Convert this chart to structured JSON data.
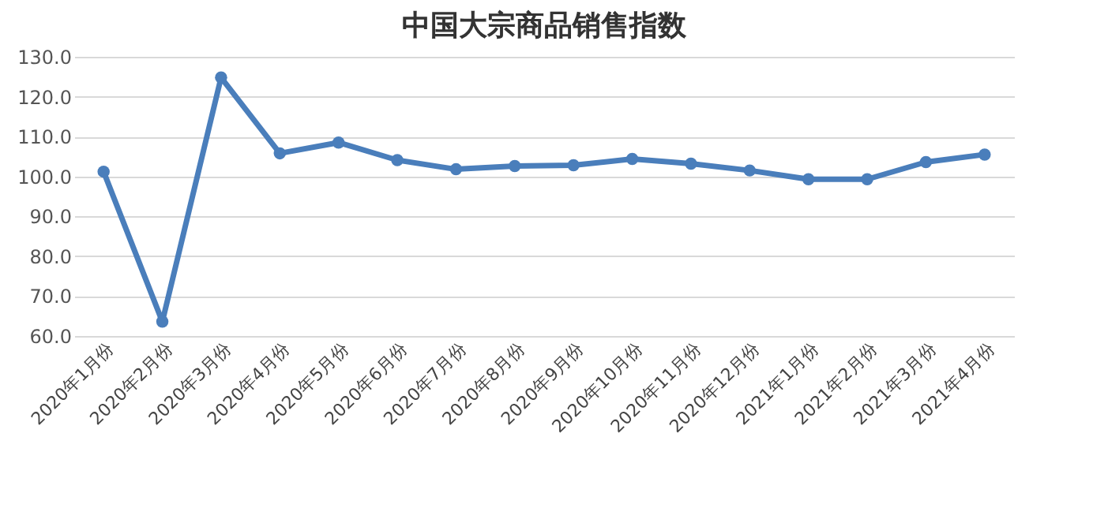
{
  "chart_data": {
    "type": "line",
    "title": "中国大宗商品销售指数",
    "categories": [
      "2020年1月份",
      "2020年2月份",
      "2020年3月份",
      "2020年4月份",
      "2020年5月份",
      "2020年6月份",
      "2020年7月份",
      "2020年8月份",
      "2020年9月份",
      "2020年10月份",
      "2020年11月份",
      "2020年12月份",
      "2021年1月份",
      "2021年2月份",
      "2021年3月份",
      "2021年4月份"
    ],
    "series": [
      {
        "color": "#4a7ebb",
        "values": [
          101.2,
          63.6,
          124.8,
          105.8,
          108.5,
          104.1,
          101.8,
          102.6,
          102.8,
          104.4,
          103.2,
          101.5,
          99.3,
          99.3,
          103.6,
          105.5
        ]
      }
    ],
    "ylim": [
      60,
      130
    ],
    "yticks": [
      {
        "value": 60,
        "label": "60.0"
      },
      {
        "value": 70,
        "label": "70.0"
      },
      {
        "value": 80,
        "label": "80.0"
      },
      {
        "value": 90,
        "label": "90.0"
      },
      {
        "value": 100,
        "label": "100.0"
      },
      {
        "value": 110,
        "label": "110.0"
      },
      {
        "value": 120,
        "label": "120.0"
      },
      {
        "value": 130,
        "label": "130.0"
      }
    ],
    "grid": "y",
    "marker": "circle",
    "line_style": "solid"
  }
}
